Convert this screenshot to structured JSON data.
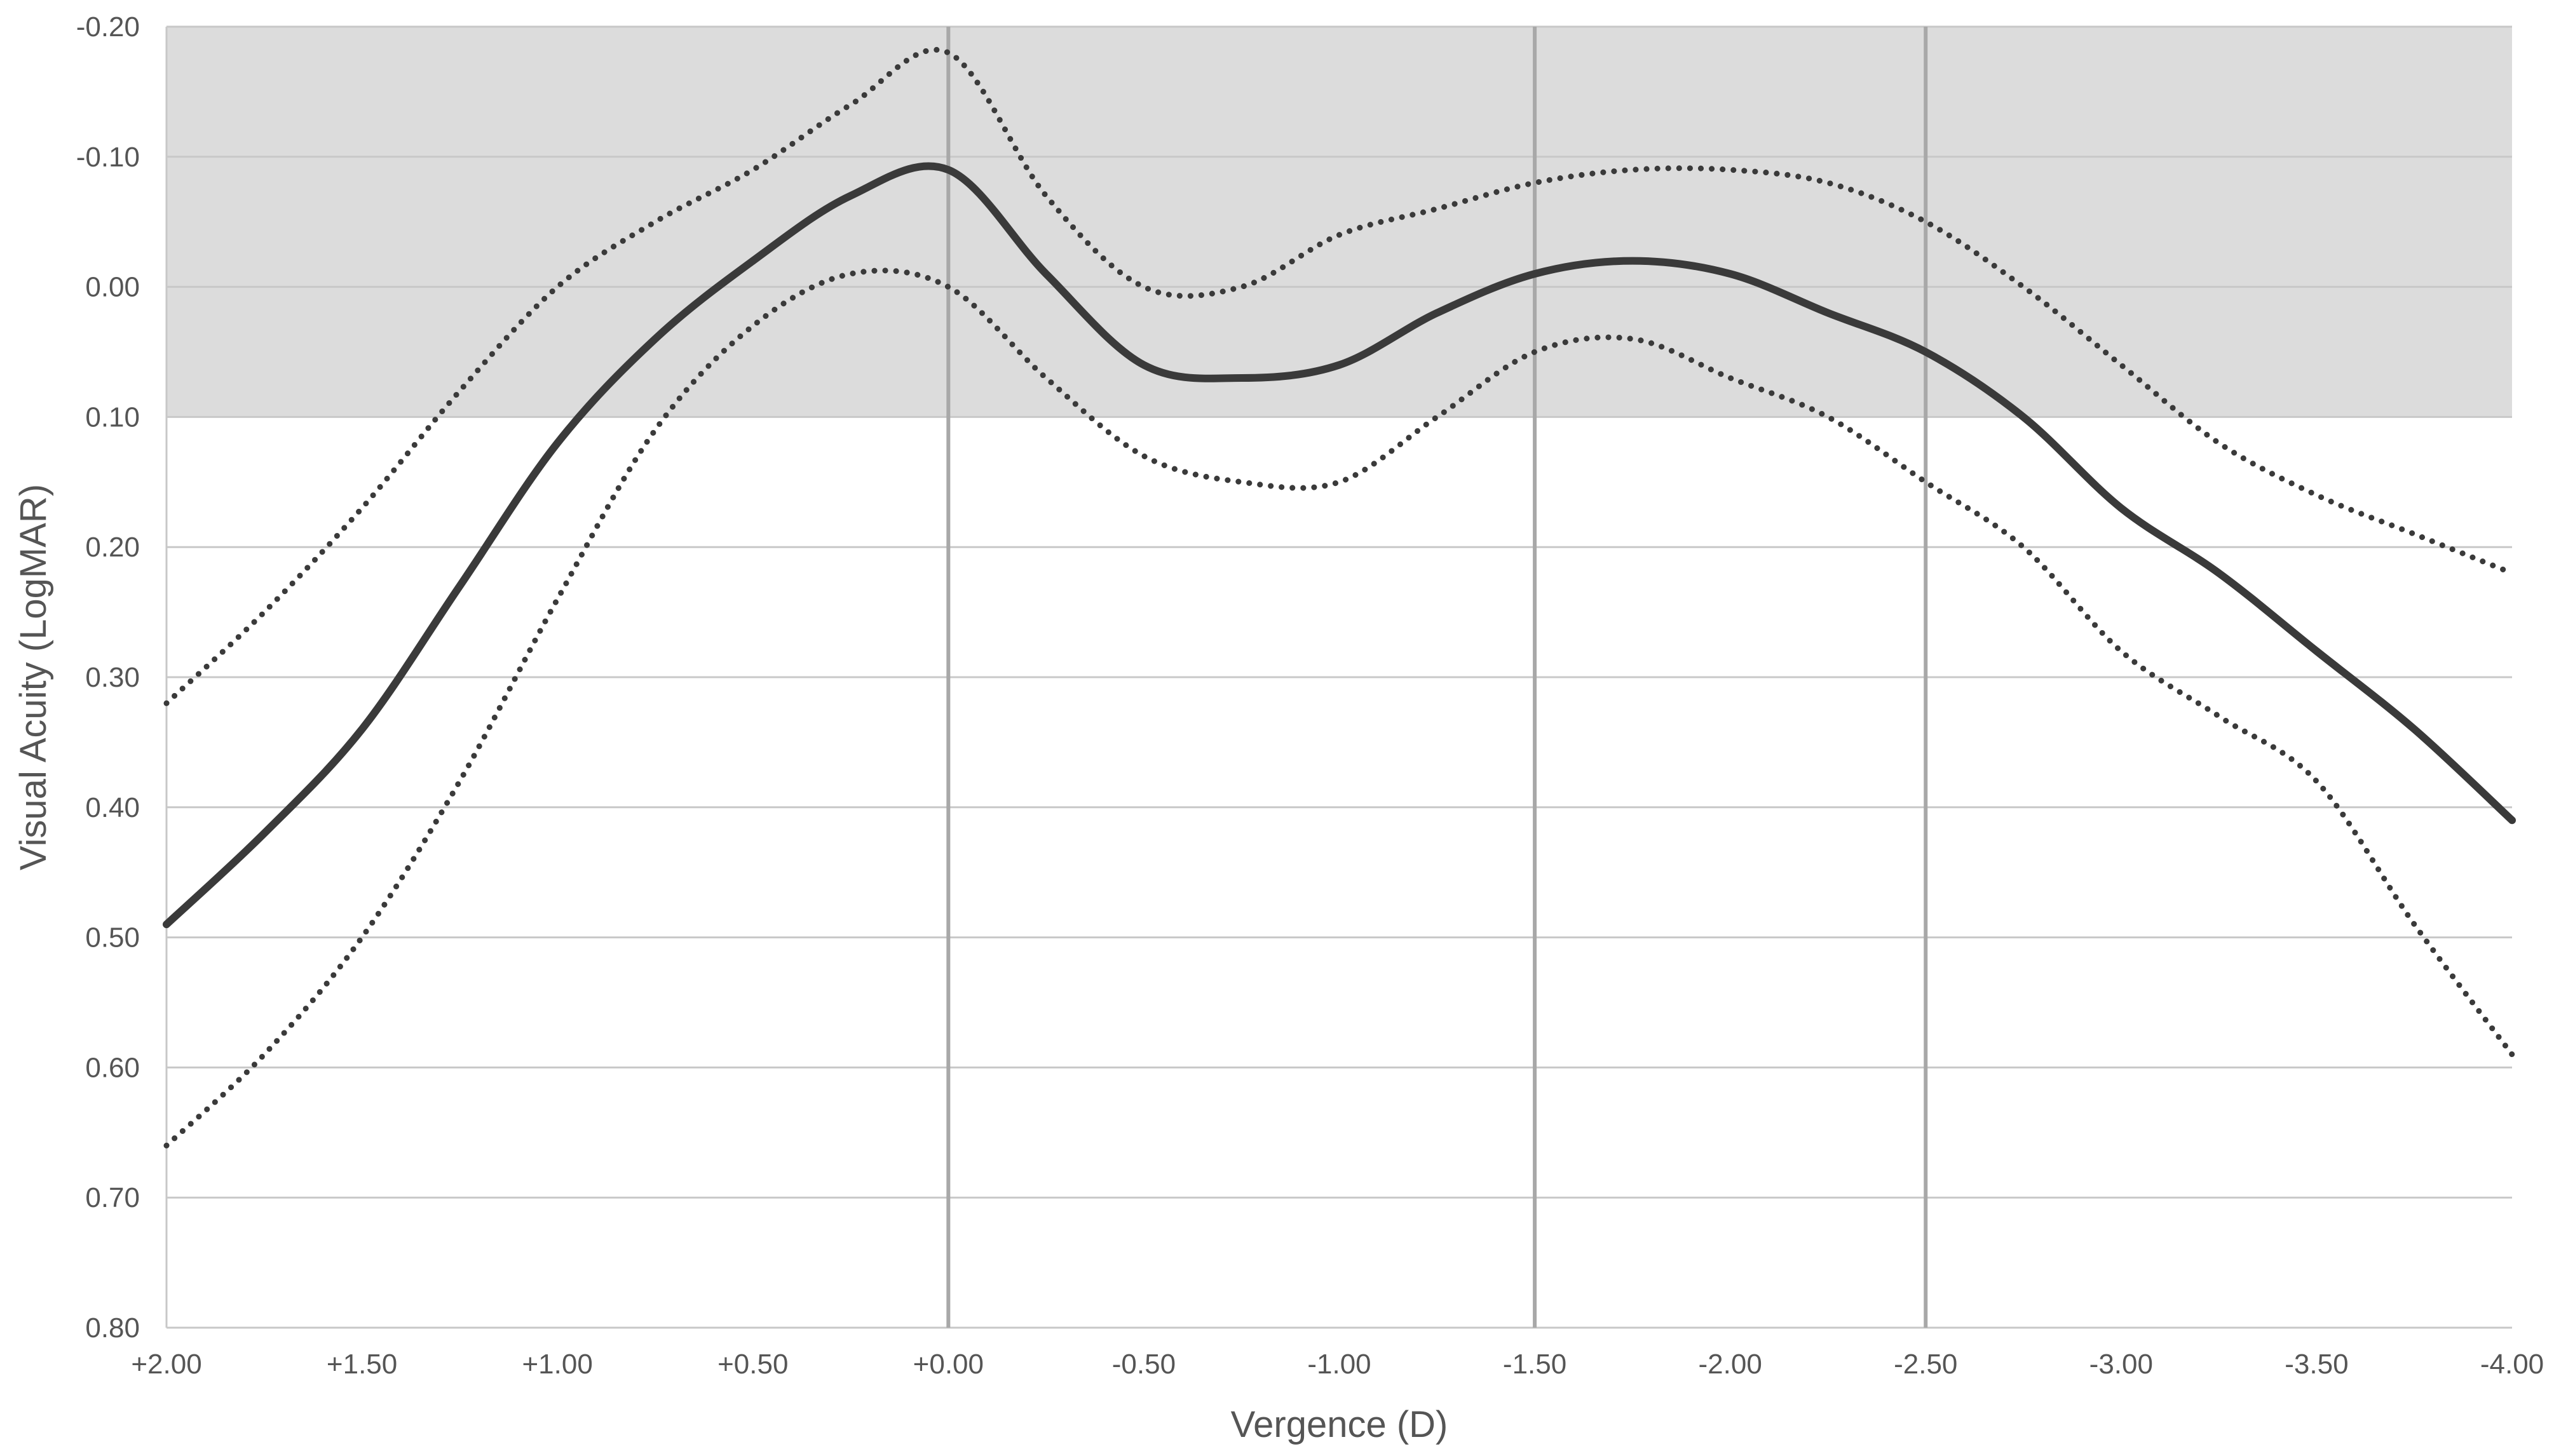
{
  "chart_data": {
    "type": "line",
    "title": "",
    "xlabel": "Vergence (D)",
    "ylabel": "Visual Acuity (LogMAR)",
    "x_ticks": [
      {
        "value": 2.0,
        "label": "+2.00"
      },
      {
        "value": 1.5,
        "label": "+1.50"
      },
      {
        "value": 1.0,
        "label": "+1.00"
      },
      {
        "value": 0.5,
        "label": "+0.50"
      },
      {
        "value": 0.0,
        "label": "+0.00"
      },
      {
        "value": -0.5,
        "label": "-0.50"
      },
      {
        "value": -1.0,
        "label": "-1.00"
      },
      {
        "value": -1.5,
        "label": "-1.50"
      },
      {
        "value": -2.0,
        "label": "-2.00"
      },
      {
        "value": -2.5,
        "label": "-2.50"
      },
      {
        "value": -3.0,
        "label": "-3.00"
      },
      {
        "value": -3.5,
        "label": "-3.50"
      },
      {
        "value": -4.0,
        "label": "-4.00"
      }
    ],
    "y_ticks": [
      {
        "value": -0.2,
        "label": "-0.20"
      },
      {
        "value": -0.1,
        "label": "-0.10"
      },
      {
        "value": 0.0,
        "label": "0.00"
      },
      {
        "value": 0.1,
        "label": "0.10"
      },
      {
        "value": 0.2,
        "label": "0.20"
      },
      {
        "value": 0.3,
        "label": "0.30"
      },
      {
        "value": 0.4,
        "label": "0.40"
      },
      {
        "value": 0.5,
        "label": "0.50"
      },
      {
        "value": 0.6,
        "label": "0.60"
      },
      {
        "value": 0.7,
        "label": "0.70"
      },
      {
        "value": 0.8,
        "label": "0.80"
      }
    ],
    "xlim": [
      2.0,
      -4.0
    ],
    "ylim": [
      -0.2,
      0.8
    ],
    "y_inverted": true,
    "grid": true,
    "shaded_band": {
      "y_from": -0.2,
      "y_to": 0.1,
      "color": "#dcdcdc"
    },
    "vertical_reference_lines": [
      0.0,
      -1.5,
      -2.5
    ],
    "series": [
      {
        "style": "solid",
        "color": "#3a3a3a",
        "x": [
          2.0,
          1.75,
          1.5,
          1.25,
          1.0,
          0.75,
          0.5,
          0.25,
          0.0,
          -0.25,
          -0.5,
          -0.75,
          -1.0,
          -1.25,
          -1.5,
          -1.75,
          -2.0,
          -2.25,
          -2.5,
          -2.75,
          -3.0,
          -3.25,
          -3.5,
          -3.75,
          -4.0
        ],
        "values": [
          0.49,
          0.42,
          0.34,
          0.23,
          0.12,
          0.04,
          -0.02,
          -0.07,
          -0.09,
          -0.01,
          0.06,
          0.07,
          0.06,
          0.02,
          -0.01,
          -0.02,
          -0.01,
          0.02,
          0.05,
          0.1,
          0.17,
          0.22,
          0.28,
          0.34,
          0.41
        ]
      },
      {
        "style": "dotted",
        "color": "#3a3a3a",
        "x": [
          2.0,
          1.75,
          1.5,
          1.25,
          1.0,
          0.75,
          0.5,
          0.25,
          0.0,
          -0.25,
          -0.5,
          -0.75,
          -1.0,
          -1.25,
          -1.5,
          -1.75,
          -2.0,
          -2.25,
          -2.5,
          -2.75,
          -3.0,
          -3.25,
          -3.5,
          -3.75,
          -4.0
        ],
        "values": [
          0.32,
          0.25,
          0.17,
          0.08,
          0.0,
          -0.05,
          -0.09,
          -0.14,
          -0.18,
          -0.07,
          0.0,
          0.0,
          -0.04,
          -0.06,
          -0.08,
          -0.09,
          -0.09,
          -0.08,
          -0.05,
          0.0,
          0.06,
          0.12,
          0.16,
          0.19,
          0.22
        ]
      },
      {
        "style": "dotted",
        "color": "#3a3a3a",
        "x": [
          2.0,
          1.75,
          1.5,
          1.25,
          1.0,
          0.75,
          0.5,
          0.25,
          0.0,
          -0.25,
          -0.5,
          -0.75,
          -1.0,
          -1.25,
          -1.5,
          -1.75,
          -2.0,
          -2.25,
          -2.5,
          -2.75,
          -3.0,
          -3.25,
          -3.5,
          -3.75,
          -4.0
        ],
        "values": [
          0.66,
          0.59,
          0.5,
          0.38,
          0.24,
          0.11,
          0.03,
          -0.01,
          0.0,
          0.07,
          0.13,
          0.15,
          0.15,
          0.1,
          0.05,
          0.04,
          0.07,
          0.1,
          0.15,
          0.2,
          0.28,
          0.33,
          0.38,
          0.49,
          0.59
        ]
      }
    ]
  }
}
